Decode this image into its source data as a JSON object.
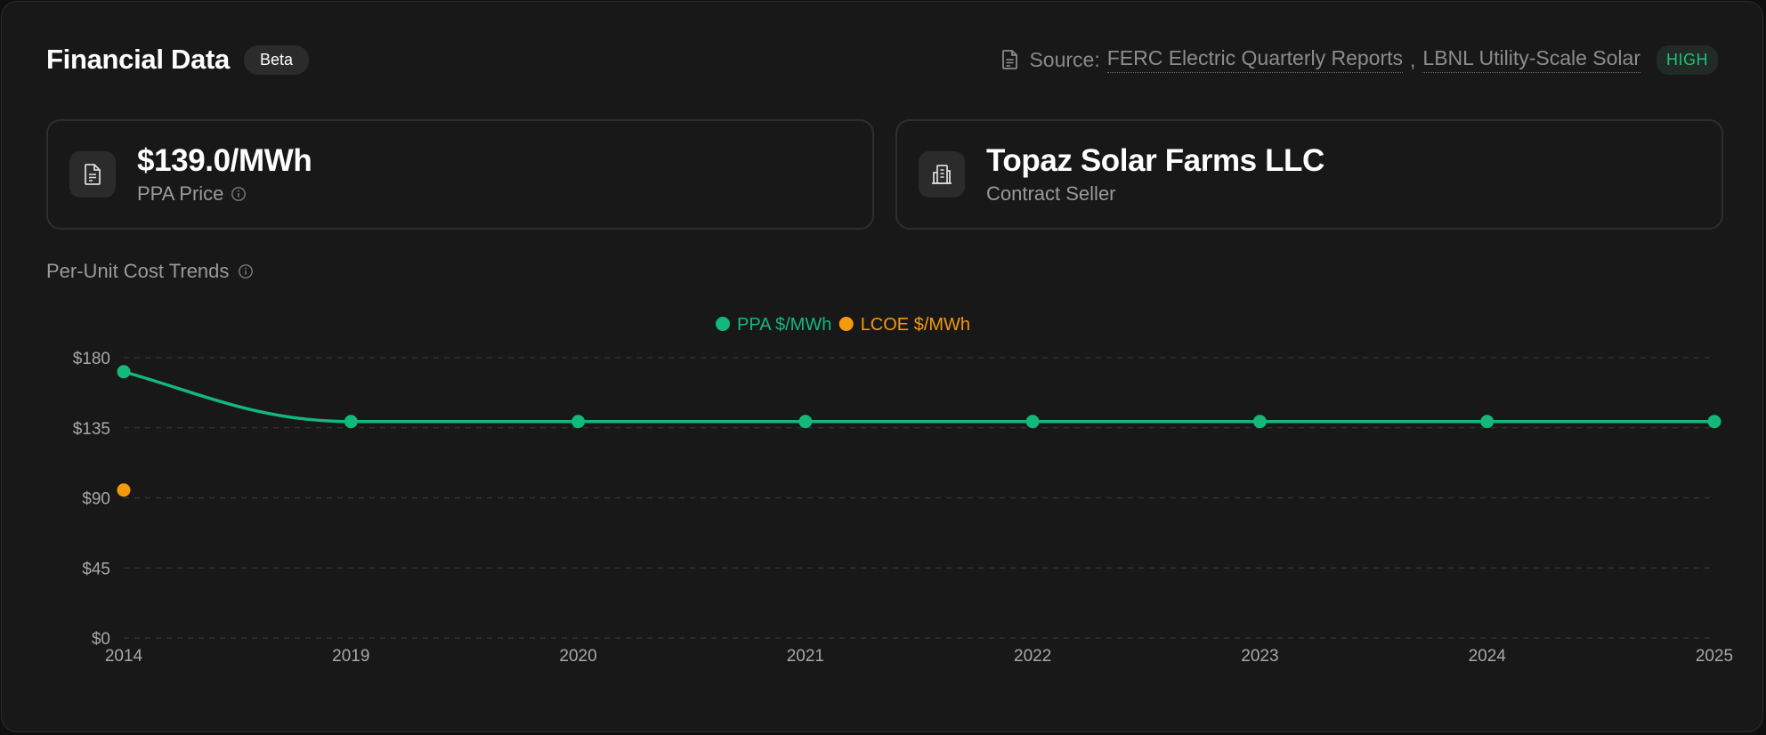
{
  "header": {
    "title": "Financial Data",
    "badge": "Beta",
    "source_label": "Source:",
    "sources": [
      "FERC Electric Quarterly Reports",
      "LBNL Utility-Scale Solar"
    ],
    "source_separator": ",",
    "confidence": "HIGH"
  },
  "cards": {
    "ppa": {
      "value": "$139.0/MWh",
      "label": "PPA Price"
    },
    "seller": {
      "value": "Topaz Solar Farms LLC",
      "label": "Contract Seller"
    }
  },
  "section": {
    "title": "Per-Unit Cost Trends"
  },
  "colors": {
    "ppa": "#12b97a",
    "lcoe": "#f59a0c",
    "badge_high": "#1fc17b"
  },
  "chart_data": {
    "type": "line",
    "categories": [
      "2014",
      "2019",
      "2020",
      "2021",
      "2022",
      "2023",
      "2024",
      "2025"
    ],
    "series": [
      {
        "name": "PPA $/MWh",
        "values": [
          171,
          139,
          139,
          139,
          139,
          139,
          139,
          139
        ]
      },
      {
        "name": "LCOE $/MWh",
        "values": [
          95,
          null,
          null,
          null,
          null,
          null,
          null,
          null
        ]
      }
    ],
    "yticks": [
      "$0",
      "$45",
      "$90",
      "$135",
      "$180"
    ],
    "ylim": [
      0,
      180
    ],
    "grid": true,
    "legend": "top-center"
  }
}
